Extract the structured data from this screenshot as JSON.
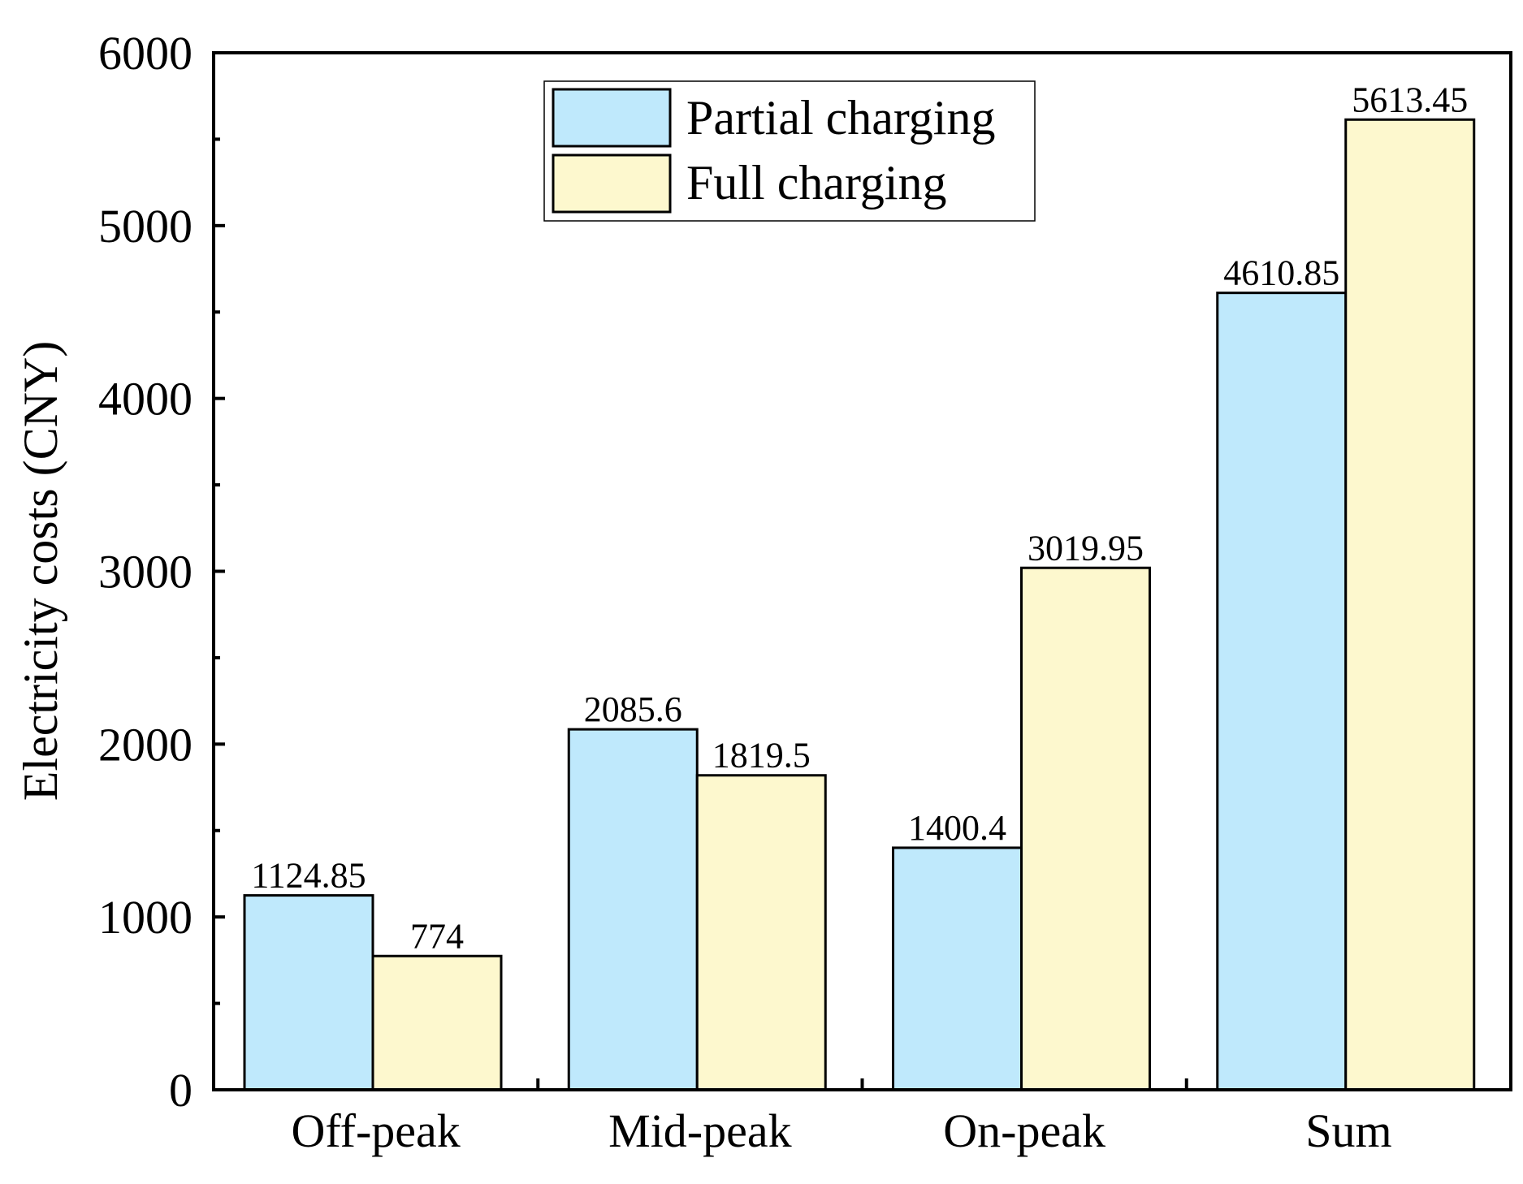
{
  "chart_data": {
    "type": "bar",
    "title": "",
    "xlabel": "",
    "ylabel": "Electricity costs (CNY)",
    "categories": [
      "Off-peak",
      "Mid-peak",
      "On-peak",
      "Sum"
    ],
    "series": [
      {
        "name": "Partial charging",
        "color": "#BFE9FC",
        "values": [
          1124.85,
          2085.6,
          1400.4,
          4610.85
        ],
        "value_labels": [
          "1124.85",
          "2085.6",
          "1400.4",
          "4610.85"
        ]
      },
      {
        "name": "Full charging",
        "color": "#FDF8CE",
        "values": [
          774,
          1819.5,
          3019.95,
          5613.45
        ],
        "value_labels": [
          "774",
          "1819.5",
          "3019.95",
          "5613.45"
        ]
      }
    ],
    "ylim": [
      0,
      6000
    ],
    "yticks": [
      0,
      1000,
      2000,
      3000,
      4000,
      5000,
      6000
    ],
    "ytick_labels": [
      "0",
      "1000",
      "2000",
      "3000",
      "4000",
      "5000",
      "6000"
    ],
    "grid": false,
    "legend_position": "top-center"
  }
}
